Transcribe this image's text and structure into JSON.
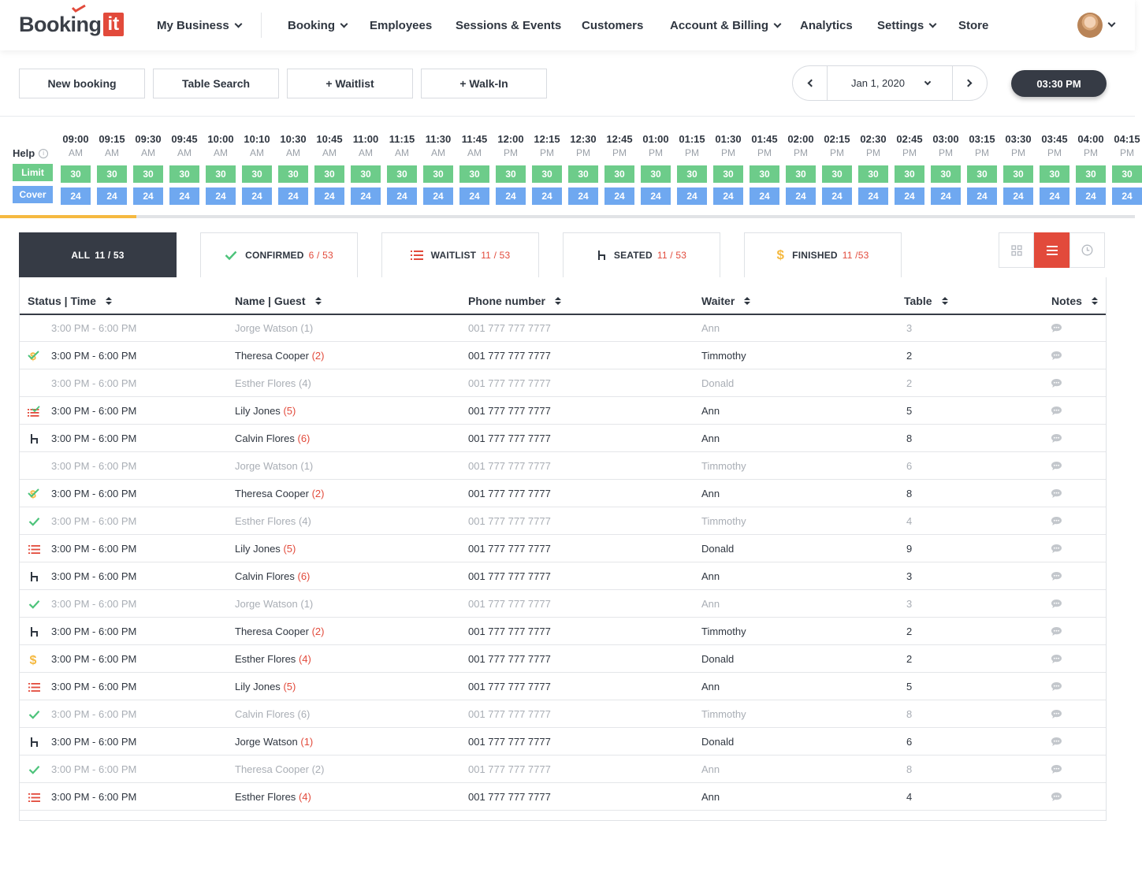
{
  "brand": {
    "word": "Booking",
    "box": "it",
    "accent": "#e24a3b"
  },
  "nav": {
    "my_business": "My Business",
    "booking": "Booking",
    "employees": "Employees",
    "sessions": "Sessions & Events",
    "customers": "Customers",
    "account": "Account & Billing",
    "analytics": "Analytics",
    "settings": "Settings",
    "store": "Store"
  },
  "actions": {
    "new_booking": "New booking",
    "table_search": "Table Search",
    "waitlist": "+ Waitlist",
    "walk_in": "+ Walk-In",
    "date": "Jan 1, 2020",
    "time": "03:30 PM"
  },
  "timeline": {
    "help": "Help",
    "limit_label": "Limit",
    "cover_label": "Cover",
    "progress_fraction": 0.12,
    "slots": [
      {
        "t": "09:00",
        "p": "AM",
        "l": "30",
        "c": "24"
      },
      {
        "t": "09:15",
        "p": "AM",
        "l": "30",
        "c": "24"
      },
      {
        "t": "09:30",
        "p": "AM",
        "l": "30",
        "c": "24"
      },
      {
        "t": "09:45",
        "p": "AM",
        "l": "30",
        "c": "24"
      },
      {
        "t": "10:00",
        "p": "AM",
        "l": "30",
        "c": "24"
      },
      {
        "t": "10:10",
        "p": "AM",
        "l": "30",
        "c": "24"
      },
      {
        "t": "10:30",
        "p": "AM",
        "l": "30",
        "c": "24"
      },
      {
        "t": "10:45",
        "p": "AM",
        "l": "30",
        "c": "24"
      },
      {
        "t": "11:00",
        "p": "AM",
        "l": "30",
        "c": "24"
      },
      {
        "t": "11:15",
        "p": "AM",
        "l": "30",
        "c": "24"
      },
      {
        "t": "11:30",
        "p": "AM",
        "l": "30",
        "c": "24"
      },
      {
        "t": "11:45",
        "p": "AM",
        "l": "30",
        "c": "24"
      },
      {
        "t": "12:00",
        "p": "PM",
        "l": "30",
        "c": "24"
      },
      {
        "t": "12:15",
        "p": "PM",
        "l": "30",
        "c": "24"
      },
      {
        "t": "12:30",
        "p": "PM",
        "l": "30",
        "c": "24"
      },
      {
        "t": "12:45",
        "p": "PM",
        "l": "30",
        "c": "24"
      },
      {
        "t": "01:00",
        "p": "PM",
        "l": "30",
        "c": "24"
      },
      {
        "t": "01:15",
        "p": "PM",
        "l": "30",
        "c": "24"
      },
      {
        "t": "01:30",
        "p": "PM",
        "l": "30",
        "c": "24"
      },
      {
        "t": "01:45",
        "p": "PM",
        "l": "30",
        "c": "24"
      },
      {
        "t": "02:00",
        "p": "PM",
        "l": "30",
        "c": "24"
      },
      {
        "t": "02:15",
        "p": "PM",
        "l": "30",
        "c": "24"
      },
      {
        "t": "02:30",
        "p": "PM",
        "l": "30",
        "c": "24"
      },
      {
        "t": "02:45",
        "p": "PM",
        "l": "30",
        "c": "24"
      },
      {
        "t": "03:00",
        "p": "PM",
        "l": "30",
        "c": "24"
      },
      {
        "t": "03:15",
        "p": "PM",
        "l": "30",
        "c": "24"
      },
      {
        "t": "03:30",
        "p": "PM",
        "l": "30",
        "c": "24"
      },
      {
        "t": "03:45",
        "p": "PM",
        "l": "30",
        "c": "24"
      },
      {
        "t": "04:00",
        "p": "PM",
        "l": "30",
        "c": "24"
      },
      {
        "t": "04:15",
        "p": "PM",
        "l": "30",
        "c": "24"
      }
    ]
  },
  "tabs": {
    "all": {
      "label": "ALL",
      "count": "11 / 53"
    },
    "confirmed": {
      "label": "CONFIRMED",
      "count": "6 / 53"
    },
    "waitlist": {
      "label": "WAITLIST",
      "count": "11 / 53"
    },
    "seated": {
      "label": "SEATED",
      "count": "11 / 53"
    },
    "finished": {
      "label": "FINISHED",
      "count": "11 /53"
    }
  },
  "table": {
    "headers": {
      "status_time": "Status | Time",
      "name_guest": "Name | Guest",
      "phone": "Phone number",
      "waiter": "Waiter",
      "table": "Table",
      "notes": "Notes"
    },
    "rows": [
      {
        "status": "none",
        "muted": true,
        "time": "3:00 PM - 6:00 PM",
        "name": "Jorge Watson",
        "guests": "(1)",
        "phone": "001 777 777 7777",
        "waiter": "Ann",
        "table": "3"
      },
      {
        "status": "confirmed-paid",
        "muted": false,
        "time": "3:00 PM - 6:00 PM",
        "name": "Theresa Cooper",
        "guests": "(2)",
        "phone": "001 777 777 7777",
        "waiter": "Timmothy",
        "table": "2"
      },
      {
        "status": "none",
        "muted": true,
        "time": "3:00 PM - 6:00 PM",
        "name": "Esther Flores",
        "guests": "(4)",
        "phone": "001 777 777 7777",
        "waiter": "Donald",
        "table": "2"
      },
      {
        "status": "waitlist-confirmed",
        "muted": false,
        "time": "3:00 PM - 6:00 PM",
        "name": "Lily Jones",
        "guests": "(5)",
        "phone": "001 777 777 7777",
        "waiter": "Ann",
        "table": "5"
      },
      {
        "status": "seated",
        "muted": false,
        "time": "3:00 PM - 6:00 PM",
        "name": "Calvin Flores",
        "guests": "(6)",
        "phone": "001 777 777 7777",
        "waiter": "Ann",
        "table": "8"
      },
      {
        "status": "none",
        "muted": true,
        "time": "3:00 PM - 6:00 PM",
        "name": "Jorge Watson",
        "guests": "(1)",
        "phone": "001 777 777 7777",
        "waiter": "Timmothy",
        "table": "6"
      },
      {
        "status": "confirmed-paid",
        "muted": false,
        "time": "3:00 PM - 6:00 PM",
        "name": "Theresa Cooper",
        "guests": "(2)",
        "phone": "001 777 777 7777",
        "waiter": "Ann",
        "table": "8"
      },
      {
        "status": "confirmed",
        "muted": true,
        "time": "3:00 PM - 6:00 PM",
        "name": "Esther Flores",
        "guests": "(4)",
        "phone": "001 777 777 7777",
        "waiter": "Timmothy",
        "table": "4"
      },
      {
        "status": "waitlist",
        "muted": false,
        "time": "3:00 PM - 6:00 PM",
        "name": "Lily Jones",
        "guests": "(5)",
        "phone": "001 777 777 7777",
        "waiter": "Donald",
        "table": "9"
      },
      {
        "status": "seated",
        "muted": false,
        "time": "3:00 PM - 6:00 PM",
        "name": "Calvin Flores",
        "guests": "(6)",
        "phone": "001 777 777 7777",
        "waiter": "Ann",
        "table": "3"
      },
      {
        "status": "confirmed",
        "muted": true,
        "time": "3:00 PM - 6:00 PM",
        "name": "Jorge Watson",
        "guests": "(1)",
        "phone": "001 777 777 7777",
        "waiter": "Ann",
        "table": "3"
      },
      {
        "status": "seated",
        "muted": false,
        "time": "3:00 PM - 6:00 PM",
        "name": "Theresa Cooper",
        "guests": "(2)",
        "phone": "001 777 777 7777",
        "waiter": "Timmothy",
        "table": "2"
      },
      {
        "status": "finished",
        "muted": false,
        "time": "3:00 PM - 6:00 PM",
        "name": "Esther Flores",
        "guests": "(4)",
        "phone": "001 777 777 7777",
        "waiter": "Donald",
        "table": "2"
      },
      {
        "status": "waitlist",
        "muted": false,
        "time": "3:00 PM - 6:00 PM",
        "name": "Lily Jones",
        "guests": "(5)",
        "phone": "001 777 777 7777",
        "waiter": "Ann",
        "table": "5"
      },
      {
        "status": "confirmed",
        "muted": true,
        "time": "3:00 PM - 6:00 PM",
        "name": "Calvin Flores",
        "guests": "(6)",
        "phone": "001 777 777 7777",
        "waiter": "Timmothy",
        "table": "8"
      },
      {
        "status": "seated",
        "muted": false,
        "time": "3:00 PM - 6:00 PM",
        "name": "Jorge Watson",
        "guests": "(1)",
        "phone": "001 777 777 7777",
        "waiter": "Donald",
        "table": "6"
      },
      {
        "status": "confirmed",
        "muted": true,
        "time": "3:00 PM - 6:00 PM",
        "name": "Theresa Cooper",
        "guests": "(2)",
        "phone": "001 777 777 7777",
        "waiter": "Ann",
        "table": "8"
      },
      {
        "status": "waitlist",
        "muted": false,
        "time": "3:00 PM - 6:00 PM",
        "name": "Esther Flores",
        "guests": "(4)",
        "phone": "001 777 777 7777",
        "waiter": "Ann",
        "table": "4"
      }
    ]
  },
  "colors": {
    "dark": "#363b45",
    "red": "#e24a3b",
    "green": "#6dcc8a",
    "blue": "#6fa8f0",
    "gold": "#f5b940",
    "check": "#4cc37a"
  }
}
